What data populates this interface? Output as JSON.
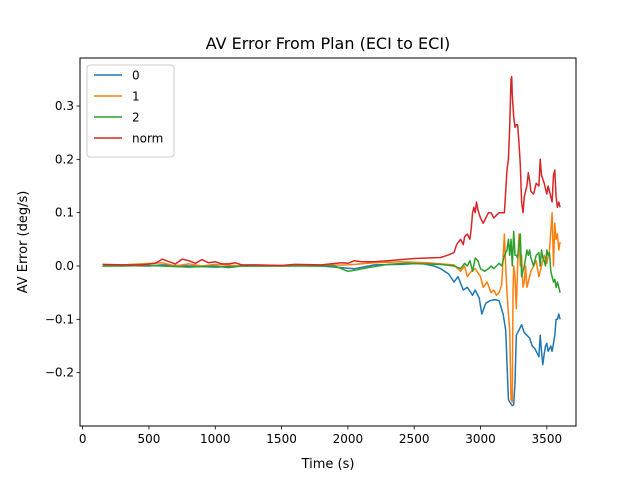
{
  "chart_data": {
    "type": "line",
    "title": "AV Error From Plan (ECI to ECI)",
    "xlabel": "Time (s)",
    "ylabel": "AV Error (deg/s)",
    "xlim": [
      -20,
      3720
    ],
    "ylim": [
      -0.3,
      0.39
    ],
    "xticks": [
      0,
      500,
      1000,
      1500,
      2000,
      2500,
      3000,
      3500
    ],
    "yticks": [
      -0.2,
      -0.1,
      0.0,
      0.1,
      0.2,
      0.3
    ],
    "ytick_labels": [
      "−0.2",
      "−0.1",
      "0.0",
      "0.1",
      "0.2",
      "0.3"
    ],
    "grid": false,
    "legend_position": "top-left",
    "series": [
      {
        "name": "0",
        "color": "#1f77b4",
        "points": [
          [
            150,
            0.0
          ],
          [
            300,
            0.001
          ],
          [
            500,
            0.0
          ],
          [
            600,
            0.002
          ],
          [
            800,
            0.0
          ],
          [
            1000,
            -0.002
          ],
          [
            1200,
            0.0
          ],
          [
            1500,
            0.001
          ],
          [
            1800,
            0.0
          ],
          [
            1950,
            -0.003
          ],
          [
            2050,
            -0.005
          ],
          [
            2200,
            0.002
          ],
          [
            2400,
            0.003
          ],
          [
            2550,
            0.005
          ],
          [
            2650,
            0.0
          ],
          [
            2700,
            -0.005
          ],
          [
            2760,
            -0.015
          ],
          [
            2800,
            -0.03
          ],
          [
            2830,
            -0.02
          ],
          [
            2870,
            -0.045
          ],
          [
            2900,
            -0.04
          ],
          [
            2940,
            -0.055
          ],
          [
            2960,
            -0.045
          ],
          [
            2990,
            -0.06
          ],
          [
            3010,
            -0.09
          ],
          [
            3040,
            -0.07
          ],
          [
            3070,
            -0.065
          ],
          [
            3110,
            -0.063
          ],
          [
            3140,
            -0.065
          ],
          [
            3170,
            -0.09
          ],
          [
            3190,
            -0.12
          ],
          [
            3210,
            -0.25
          ],
          [
            3220,
            -0.255
          ],
          [
            3240,
            -0.262
          ],
          [
            3250,
            -0.26
          ],
          [
            3260,
            -0.22
          ],
          [
            3270,
            -0.13
          ],
          [
            3290,
            -0.12
          ],
          [
            3310,
            -0.11
          ],
          [
            3330,
            -0.125
          ],
          [
            3350,
            -0.13
          ],
          [
            3370,
            -0.135
          ],
          [
            3390,
            -0.15
          ],
          [
            3410,
            -0.155
          ],
          [
            3420,
            -0.16
          ],
          [
            3440,
            -0.17
          ],
          [
            3450,
            -0.13
          ],
          [
            3460,
            -0.16
          ],
          [
            3470,
            -0.185
          ],
          [
            3480,
            -0.165
          ],
          [
            3490,
            -0.15
          ],
          [
            3500,
            -0.145
          ],
          [
            3510,
            -0.16
          ],
          [
            3520,
            -0.155
          ],
          [
            3530,
            -0.15
          ],
          [
            3540,
            -0.16
          ],
          [
            3550,
            -0.145
          ],
          [
            3560,
            -0.13
          ],
          [
            3570,
            -0.1
          ],
          [
            3580,
            -0.1
          ],
          [
            3590,
            -0.09
          ],
          [
            3600,
            -0.1
          ]
        ]
      },
      {
        "name": "1",
        "color": "#ff7f0e",
        "points": [
          [
            150,
            0.0
          ],
          [
            300,
            0.002
          ],
          [
            600,
            0.006
          ],
          [
            700,
            0.0
          ],
          [
            800,
            0.004
          ],
          [
            900,
            0.0
          ],
          [
            1000,
            0.003
          ],
          [
            1200,
            0.0
          ],
          [
            1500,
            0.0
          ],
          [
            1800,
            0.001
          ],
          [
            2000,
            0.002
          ],
          [
            2200,
            0.006
          ],
          [
            2400,
            0.008
          ],
          [
            2600,
            0.006
          ],
          [
            2700,
            0.004
          ],
          [
            2800,
            0.002
          ],
          [
            2850,
            -0.01
          ],
          [
            2880,
            0.0
          ],
          [
            2900,
            -0.02
          ],
          [
            2930,
            -0.01
          ],
          [
            2960,
            -0.005
          ],
          [
            3000,
            -0.02
          ],
          [
            3020,
            -0.04
          ],
          [
            3050,
            -0.03
          ],
          [
            3080,
            -0.05
          ],
          [
            3100,
            -0.045
          ],
          [
            3120,
            -0.055
          ],
          [
            3140,
            -0.05
          ],
          [
            3160,
            -0.035
          ],
          [
            3180,
            0.06
          ],
          [
            3190,
            0.0
          ],
          [
            3200,
            -0.05
          ],
          [
            3210,
            -0.09
          ],
          [
            3220,
            -0.12
          ],
          [
            3230,
            -0.25
          ],
          [
            3240,
            -0.255
          ],
          [
            3245,
            -0.05
          ],
          [
            3250,
            0.0
          ],
          [
            3260,
            -0.02
          ],
          [
            3270,
            -0.08
          ],
          [
            3280,
            0.0
          ],
          [
            3290,
            0.06
          ],
          [
            3300,
            0.0
          ],
          [
            3310,
            0.02
          ],
          [
            3320,
            -0.04
          ],
          [
            3330,
            -0.03
          ],
          [
            3340,
            0.0
          ],
          [
            3350,
            -0.04
          ],
          [
            3360,
            -0.03
          ],
          [
            3380,
            -0.01
          ],
          [
            3400,
            0.0
          ],
          [
            3420,
            0.01
          ],
          [
            3440,
            -0.02
          ],
          [
            3460,
            0.0
          ],
          [
            3480,
            0.02
          ],
          [
            3500,
            0.005
          ],
          [
            3520,
            0.03
          ],
          [
            3540,
            0.1
          ],
          [
            3550,
            0.0
          ],
          [
            3560,
            0.08
          ],
          [
            3570,
            0.05
          ],
          [
            3580,
            0.06
          ],
          [
            3590,
            0.03
          ],
          [
            3600,
            0.045
          ]
        ]
      },
      {
        "name": "2",
        "color": "#2ca02c",
        "points": [
          [
            150,
            0.0
          ],
          [
            300,
            0.0
          ],
          [
            500,
            0.001
          ],
          [
            600,
            0.0
          ],
          [
            800,
            -0.002
          ],
          [
            1000,
            0.0
          ],
          [
            1100,
            -0.003
          ],
          [
            1200,
            0.0
          ],
          [
            1500,
            0.0
          ],
          [
            1800,
            0.0
          ],
          [
            1900,
            0.0
          ],
          [
            1950,
            -0.005
          ],
          [
            2000,
            -0.01
          ],
          [
            2050,
            -0.008
          ],
          [
            2150,
            -0.003
          ],
          [
            2300,
            0.003
          ],
          [
            2450,
            0.005
          ],
          [
            2550,
            0.004
          ],
          [
            2700,
            0.003
          ],
          [
            2800,
            0.0
          ],
          [
            2850,
            -0.005
          ],
          [
            2880,
            0.005
          ],
          [
            2900,
            0.0
          ],
          [
            2920,
            0.01
          ],
          [
            2940,
            -0.01
          ],
          [
            2960,
            0.015
          ],
          [
            2980,
            0.01
          ],
          [
            3000,
            -0.005
          ],
          [
            3030,
            -0.01
          ],
          [
            3060,
            -0.005
          ],
          [
            3080,
            0.0
          ],
          [
            3100,
            -0.005
          ],
          [
            3120,
            0.0
          ],
          [
            3140,
            0.005
          ],
          [
            3160,
            0.0
          ],
          [
            3180,
            0.02
          ],
          [
            3200,
            0.03
          ],
          [
            3210,
            0.05
          ],
          [
            3220,
            0.02
          ],
          [
            3230,
            0.05
          ],
          [
            3240,
            0.0
          ],
          [
            3250,
            0.065
          ],
          [
            3260,
            0.02
          ],
          [
            3270,
            0.02
          ],
          [
            3280,
            0.015
          ],
          [
            3300,
            0.06
          ],
          [
            3310,
            -0.02
          ],
          [
            3320,
            -0.01
          ],
          [
            3330,
            0.0
          ],
          [
            3340,
            0.015
          ],
          [
            3350,
            0.03
          ],
          [
            3360,
            0.02
          ],
          [
            3370,
            0.03
          ],
          [
            3380,
            0.015
          ],
          [
            3400,
            0.0
          ],
          [
            3420,
            0.02
          ],
          [
            3440,
            0.025
          ],
          [
            3450,
            0.0
          ],
          [
            3460,
            0.03
          ],
          [
            3470,
            0.015
          ],
          [
            3480,
            0.01
          ],
          [
            3490,
            0.0
          ],
          [
            3500,
            0.03
          ],
          [
            3510,
            0.02
          ],
          [
            3520,
            0.025
          ],
          [
            3530,
            -0.01
          ],
          [
            3540,
            -0.02
          ],
          [
            3550,
            -0.03
          ],
          [
            3560,
            -0.025
          ],
          [
            3570,
            -0.04
          ],
          [
            3580,
            -0.03
          ],
          [
            3590,
            -0.04
          ],
          [
            3600,
            -0.05
          ]
        ]
      },
      {
        "name": "norm",
        "color": "#d62728",
        "points": [
          [
            150,
            0.003
          ],
          [
            300,
            0.002
          ],
          [
            450,
            0.002
          ],
          [
            550,
            0.005
          ],
          [
            600,
            0.013
          ],
          [
            650,
            0.008
          ],
          [
            700,
            0.004
          ],
          [
            750,
            0.013
          ],
          [
            800,
            0.01
          ],
          [
            850,
            0.005
          ],
          [
            900,
            0.012
          ],
          [
            950,
            0.006
          ],
          [
            1000,
            0.008
          ],
          [
            1050,
            0.004
          ],
          [
            1100,
            0.004
          ],
          [
            1150,
            0.006
          ],
          [
            1200,
            0.002
          ],
          [
            1300,
            0.002
          ],
          [
            1500,
            0.001
          ],
          [
            1600,
            0.003
          ],
          [
            1800,
            0.002
          ],
          [
            1950,
            0.006
          ],
          [
            2000,
            0.005
          ],
          [
            2050,
            0.01
          ],
          [
            2100,
            0.008
          ],
          [
            2200,
            0.008
          ],
          [
            2300,
            0.01
          ],
          [
            2400,
            0.012
          ],
          [
            2500,
            0.014
          ],
          [
            2600,
            0.015
          ],
          [
            2700,
            0.016
          ],
          [
            2750,
            0.02
          ],
          [
            2800,
            0.025
          ],
          [
            2820,
            0.04
          ],
          [
            2850,
            0.05
          ],
          [
            2870,
            0.04
          ],
          [
            2880,
            0.055
          ],
          [
            2900,
            0.06
          ],
          [
            2920,
            0.05
          ],
          [
            2930,
            0.07
          ],
          [
            2940,
            0.1
          ],
          [
            2950,
            0.11
          ],
          [
            2960,
            0.1
          ],
          [
            2970,
            0.12
          ],
          [
            2980,
            0.105
          ],
          [
            3000,
            0.09
          ],
          [
            3020,
            0.08
          ],
          [
            3040,
            0.09
          ],
          [
            3060,
            0.1
          ],
          [
            3080,
            0.1
          ],
          [
            3100,
            0.09
          ],
          [
            3120,
            0.095
          ],
          [
            3140,
            0.1
          ],
          [
            3160,
            0.1
          ],
          [
            3180,
            0.1
          ],
          [
            3190,
            0.14
          ],
          [
            3200,
            0.18
          ],
          [
            3210,
            0.2
          ],
          [
            3220,
            0.26
          ],
          [
            3230,
            0.35
          ],
          [
            3235,
            0.355
          ],
          [
            3240,
            0.32
          ],
          [
            3250,
            0.28
          ],
          [
            3260,
            0.26
          ],
          [
            3270,
            0.265
          ],
          [
            3280,
            0.265
          ],
          [
            3290,
            0.23
          ],
          [
            3300,
            0.19
          ],
          [
            3310,
            0.12
          ],
          [
            3320,
            0.1
          ],
          [
            3330,
            0.13
          ],
          [
            3340,
            0.14
          ],
          [
            3350,
            0.15
          ],
          [
            3360,
            0.175
          ],
          [
            3370,
            0.16
          ],
          [
            3380,
            0.14
          ],
          [
            3400,
            0.135
          ],
          [
            3420,
            0.155
          ],
          [
            3440,
            0.15
          ],
          [
            3450,
            0.2
          ],
          [
            3460,
            0.17
          ],
          [
            3480,
            0.155
          ],
          [
            3500,
            0.135
          ],
          [
            3510,
            0.15
          ],
          [
            3520,
            0.14
          ],
          [
            3530,
            0.13
          ],
          [
            3540,
            0.12
          ],
          [
            3550,
            0.17
          ],
          [
            3560,
            0.18
          ],
          [
            3570,
            0.13
          ],
          [
            3580,
            0.11
          ],
          [
            3590,
            0.12
          ],
          [
            3600,
            0.11
          ]
        ]
      }
    ]
  }
}
